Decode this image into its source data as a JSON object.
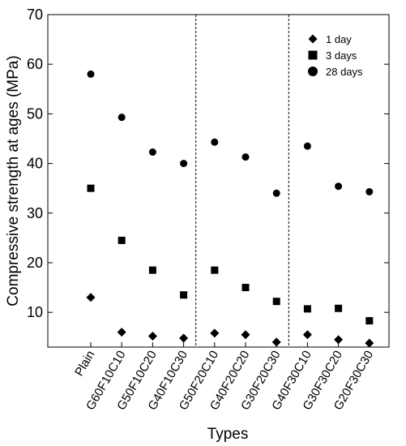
{
  "chart_data": {
    "type": "scatter",
    "xlabel": "Types",
    "ylabel": "Compressive strength at ages (MPa)",
    "ylim": [
      3,
      70
    ],
    "yticks": [
      10,
      20,
      30,
      40,
      50,
      60,
      70
    ],
    "categories": [
      "Plain",
      "G60F10C10",
      "G50F10C20",
      "G40F10C30",
      "G50F20C10",
      "G40F20C20",
      "G30F20C30",
      "G40F30C10",
      "G30F30C20",
      "G20F30C30"
    ],
    "vertical_separators_after": [
      "G40F10C30",
      "G30F20C30"
    ],
    "legend_position": "top-right",
    "series": [
      {
        "name": "1 day",
        "marker": "diamond",
        "values": [
          13.0,
          6.0,
          5.2,
          4.8,
          5.8,
          5.5,
          4.0,
          5.5,
          4.5,
          3.8
        ]
      },
      {
        "name": "3 days",
        "marker": "square",
        "values": [
          35.0,
          24.5,
          18.5,
          13.5,
          18.5,
          15.0,
          12.2,
          10.7,
          10.8,
          8.3
        ]
      },
      {
        "name": "28 days",
        "marker": "circle",
        "values": [
          58.0,
          49.3,
          42.3,
          40.0,
          44.3,
          41.3,
          34.0,
          43.5,
          35.4,
          34.3
        ]
      }
    ]
  }
}
